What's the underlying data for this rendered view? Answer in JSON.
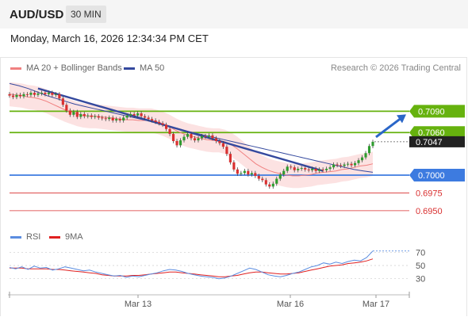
{
  "header": {
    "pair": "AUD/USD",
    "timeframe": "30 MIN"
  },
  "date_line": "Monday, March 16, 2026 12:34:34 PM CET",
  "legend": {
    "ma20": "MA 20 + Bollinger Bands",
    "ma50": "MA 50",
    "credit": "Research © 2026 Trading Central"
  },
  "rsi_legend": {
    "rsi": "RSI",
    "ma": "9MA"
  },
  "colors": {
    "up": "#2e9c2e",
    "down": "#d93030",
    "ma20": "#f08080",
    "ma50": "#34499e",
    "support": "#3d7be0",
    "resistance": "#66b20e",
    "band": "#fbd8d8",
    "rsi": "#5b8de0",
    "rsi_ma": "#e02020"
  },
  "chart_data": [
    {
      "type": "candlestick",
      "x_ticks": [
        "Mar 13",
        "Mar 16",
        "Mar 17"
      ],
      "ylim": [
        0.6932,
        0.7135
      ],
      "last_price": 0.7047,
      "levels": [
        {
          "value": 0.709,
          "label": "0.7090",
          "kind": "resistance"
        },
        {
          "value": 0.706,
          "label": "0.7060",
          "kind": "resistance"
        },
        {
          "value": 0.7,
          "label": "0.7000",
          "kind": "pivot"
        },
        {
          "value": 0.6975,
          "label": "0.6975",
          "kind": "support"
        },
        {
          "value": 0.695,
          "label": "0.6950",
          "kind": "support"
        }
      ],
      "closes": [
        0.7112,
        0.711,
        0.7113,
        0.7111,
        0.7114,
        0.7113,
        0.7116,
        0.7113,
        0.7115,
        0.7116,
        0.7114,
        0.7116,
        0.7113,
        0.7114,
        0.7108,
        0.7099,
        0.7091,
        0.7085,
        0.7089,
        0.7082,
        0.7086,
        0.7083,
        0.7084,
        0.7082,
        0.7083,
        0.7081,
        0.708,
        0.7079,
        0.7081,
        0.7077,
        0.7079,
        0.7077,
        0.7081,
        0.7084,
        0.7086,
        0.7084,
        0.7087,
        0.7083,
        0.7081,
        0.7079,
        0.7077,
        0.7075,
        0.7073,
        0.7071,
        0.7065,
        0.7058,
        0.7048,
        0.7042,
        0.7049,
        0.7054,
        0.7058,
        0.7052,
        0.7049,
        0.7052,
        0.7055,
        0.7054,
        0.7056,
        0.7052,
        0.7048,
        0.7045,
        0.704,
        0.703,
        0.7018,
        0.7008,
        0.7002,
        0.7003,
        0.7006,
        0.7001,
        0.7003,
        0.6999,
        0.6995,
        0.6993,
        0.6987,
        0.6984,
        0.6988,
        0.6995,
        0.7001,
        0.7006,
        0.7012,
        0.7011,
        0.7007,
        0.7009,
        0.701,
        0.7008,
        0.7007,
        0.7009,
        0.7006,
        0.7008,
        0.7007,
        0.7009,
        0.7011,
        0.7015,
        0.7014,
        0.7013,
        0.7015,
        0.7016,
        0.7014,
        0.7017,
        0.7021,
        0.7025,
        0.7031,
        0.7041,
        0.7047
      ],
      "ma20": [
        0.7114,
        0.7113,
        0.7112,
        0.711,
        0.7109,
        0.7107,
        0.7104,
        0.71,
        0.7096,
        0.7092,
        0.7089,
        0.7086,
        0.7084,
        0.7083,
        0.7083,
        0.7082,
        0.7081,
        0.708,
        0.7079,
        0.7078,
        0.7078,
        0.7077,
        0.7077,
        0.7077,
        0.7075,
        0.7072,
        0.7068,
        0.7063,
        0.7059,
        0.7056,
        0.7054,
        0.7052,
        0.705,
        0.7049,
        0.7049,
        0.7047,
        0.7043,
        0.7037,
        0.703,
        0.7023,
        0.7016,
        0.7011,
        0.7007,
        0.7004,
        0.7002,
        0.7,
        0.6999,
        0.6999,
        0.7,
        0.7001,
        0.7003,
        0.7004,
        0.7005,
        0.7006,
        0.7008,
        0.7009,
        0.7011,
        0.7013,
        0.7014,
        0.7016
      ],
      "ma50": [
        0.7129,
        0.7126,
        0.7122,
        0.7117,
        0.7112,
        0.7108,
        0.7104,
        0.71,
        0.7097,
        0.7094,
        0.7091,
        0.7088,
        0.7085,
        0.7082,
        0.7079,
        0.7076,
        0.7073,
        0.7069,
        0.7066,
        0.7062,
        0.7059,
        0.7056,
        0.7053,
        0.705,
        0.7047,
        0.7044,
        0.7041,
        0.7038,
        0.7035,
        0.7032,
        0.7029,
        0.7026,
        0.7023,
        0.702,
        0.7017,
        0.7014,
        0.7011,
        0.7008,
        0.7006,
        0.7004
      ]
    },
    {
      "type": "line",
      "name": "RSI",
      "ylim": [
        20,
        80
      ],
      "ticks": [
        30,
        50,
        70
      ],
      "rsi": [
        47,
        45,
        48,
        44,
        49,
        46,
        47,
        43,
        45,
        48,
        46,
        44,
        42,
        43,
        40,
        38,
        36,
        34,
        35,
        32,
        34,
        33,
        35,
        37,
        39,
        42,
        44,
        43,
        41,
        38,
        36,
        34,
        33,
        32,
        30,
        31,
        34,
        38,
        42,
        46,
        44,
        40,
        36,
        34,
        33,
        35,
        38,
        40,
        44,
        48,
        50,
        54,
        52,
        55,
        53,
        56,
        58,
        57,
        62,
        72
      ],
      "ma9": [
        46,
        46,
        46,
        45,
        45,
        45,
        45,
        44,
        44,
        43,
        42,
        41,
        40,
        39,
        38,
        36,
        35,
        34,
        34,
        34,
        35,
        35,
        36,
        37,
        38,
        39,
        40,
        40,
        39,
        38,
        37,
        36,
        35,
        34,
        33,
        33,
        34,
        35,
        37,
        39,
        40,
        40,
        39,
        38,
        37,
        37,
        38,
        39,
        41,
        43,
        45,
        47,
        49,
        50,
        51,
        53,
        54,
        55,
        57,
        60
      ]
    }
  ]
}
